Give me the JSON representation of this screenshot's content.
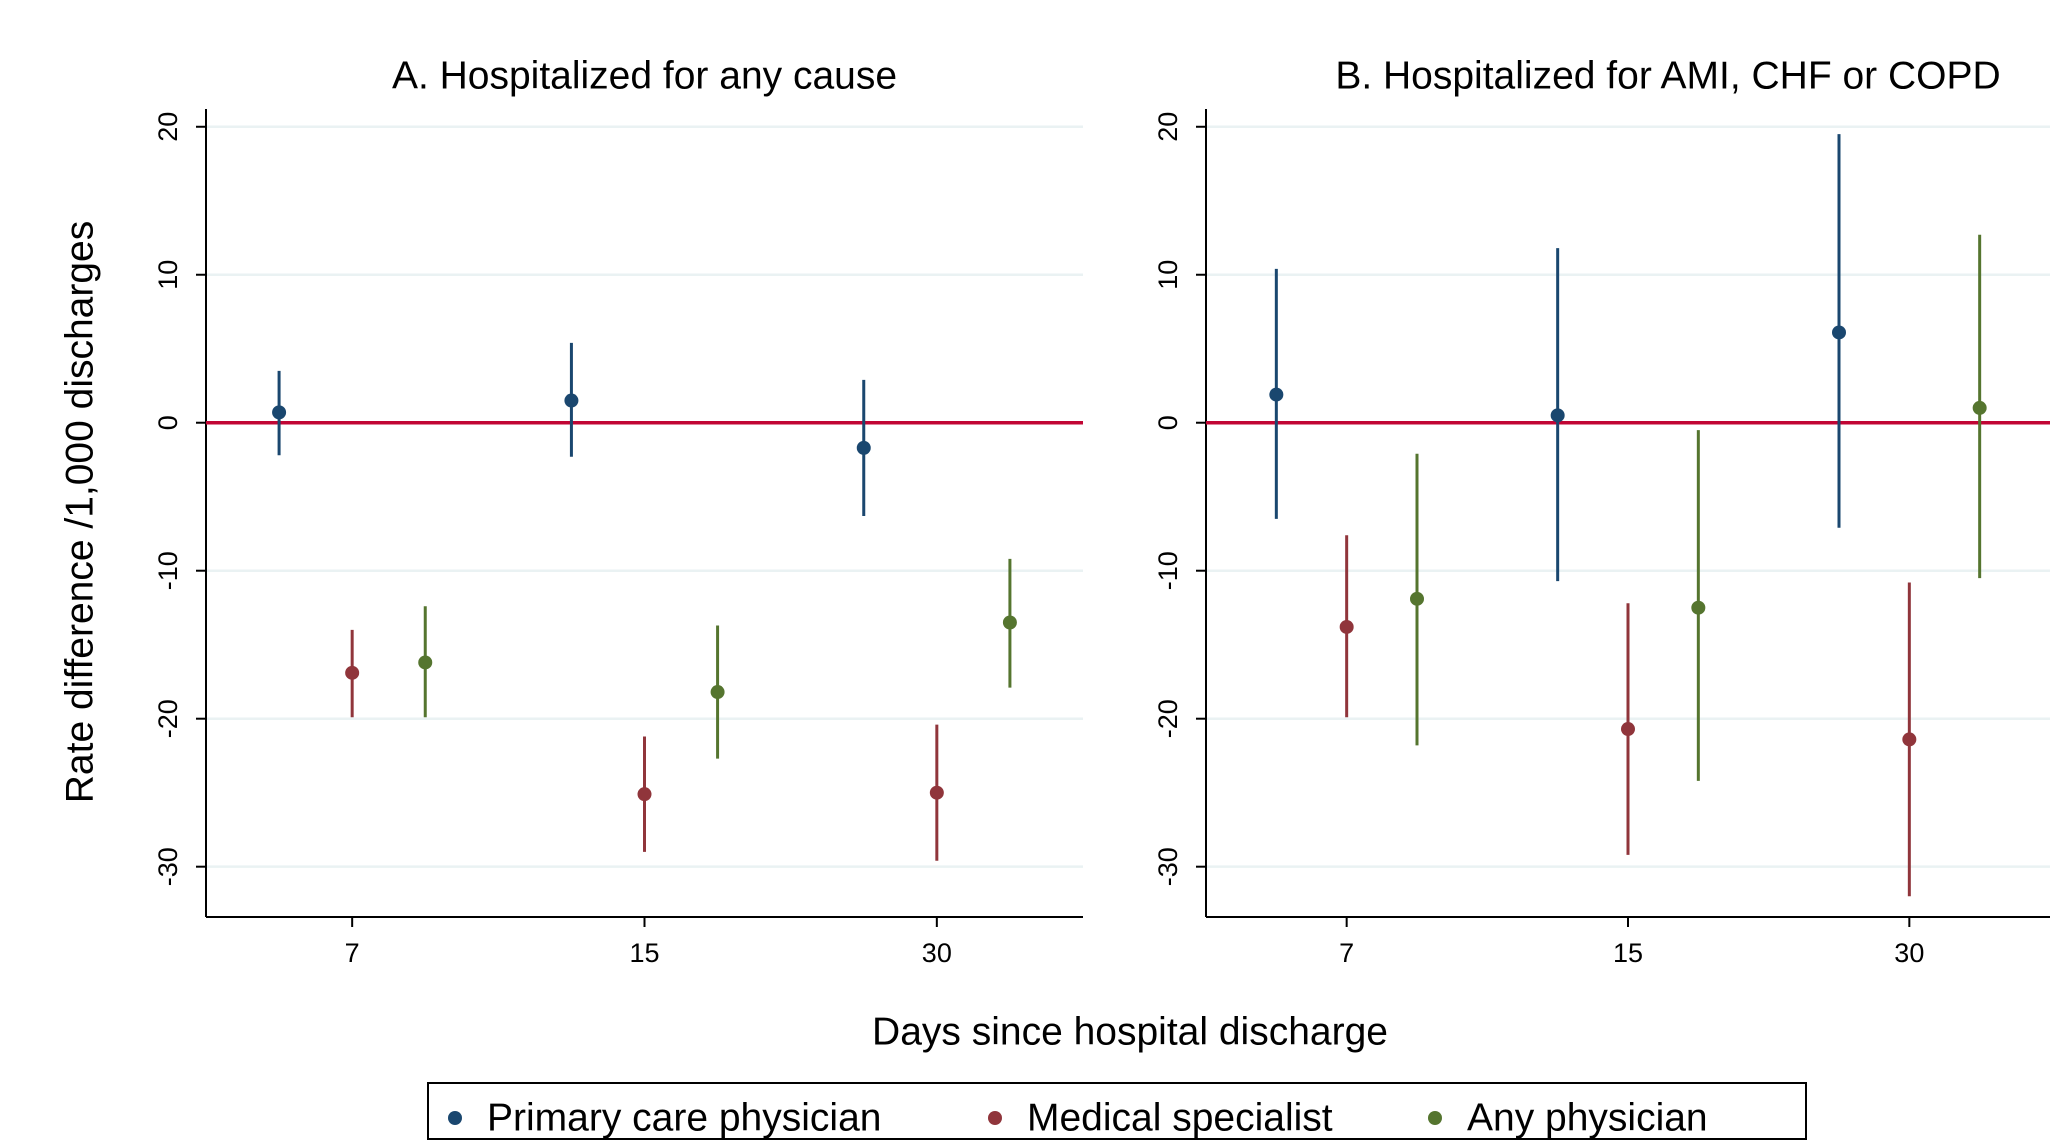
{
  "chart_data": [
    {
      "type": "errorbar",
      "title": "A. Hospitalized for any cause",
      "x_label": "Days since hospital discharge",
      "y_label": "Rate difference /1,000 discharges",
      "categories": [
        "7",
        "15",
        "30"
      ],
      "series": [
        {
          "name": "Primary care physician",
          "color": "#1a476f",
          "values": [
            0.7,
            1.5,
            -1.7
          ],
          "lower": [
            -2.2,
            -2.3,
            -6.3
          ],
          "upper": [
            3.5,
            5.4,
            2.9
          ]
        },
        {
          "name": "Medical specialist",
          "color": "#90353b",
          "values": [
            -16.9,
            -25.1,
            -25.0
          ],
          "lower": [
            -19.9,
            -29.0,
            -29.6
          ],
          "upper": [
            -14.0,
            -21.2,
            -20.4
          ]
        },
        {
          "name": "Any physician",
          "color": "#55752f",
          "values": [
            -16.2,
            -18.2,
            -13.5
          ],
          "lower": [
            -19.9,
            -22.7,
            -17.9
          ],
          "upper": [
            -12.4,
            -13.7,
            -9.2
          ]
        }
      ],
      "ylim": [
        -33.4,
        21.2
      ],
      "yticks": [
        -30,
        -20,
        -10,
        0,
        10,
        20
      ],
      "refline": 0,
      "refline_color": "#c10534",
      "grid": true
    },
    {
      "type": "errorbar",
      "title": "B. Hospitalized for AMI, CHF or COPD",
      "categories": [
        "7",
        "15",
        "30"
      ],
      "series": [
        {
          "name": "Primary care physician",
          "color": "#1a476f",
          "values": [
            1.9,
            0.5,
            6.1
          ],
          "lower": [
            -6.5,
            -10.7,
            -7.1
          ],
          "upper": [
            10.4,
            11.8,
            19.5
          ]
        },
        {
          "name": "Medical specialist",
          "color": "#90353b",
          "values": [
            -13.8,
            -20.7,
            -21.4
          ],
          "lower": [
            -19.9,
            -29.2,
            -32.0
          ],
          "upper": [
            -7.6,
            -12.2,
            -10.8
          ]
        },
        {
          "name": "Any physician",
          "color": "#55752f",
          "values": [
            -11.9,
            -12.5,
            1.0
          ],
          "lower": [
            -21.8,
            -24.2,
            -10.5
          ],
          "upper": [
            -2.1,
            -0.5,
            12.7
          ]
        }
      ],
      "ylim": [
        -33.4,
        21.2
      ],
      "yticks": [
        -30,
        -20,
        -10,
        0,
        10,
        20
      ],
      "refline": 0,
      "refline_color": "#c10534",
      "grid": true
    }
  ]
}
